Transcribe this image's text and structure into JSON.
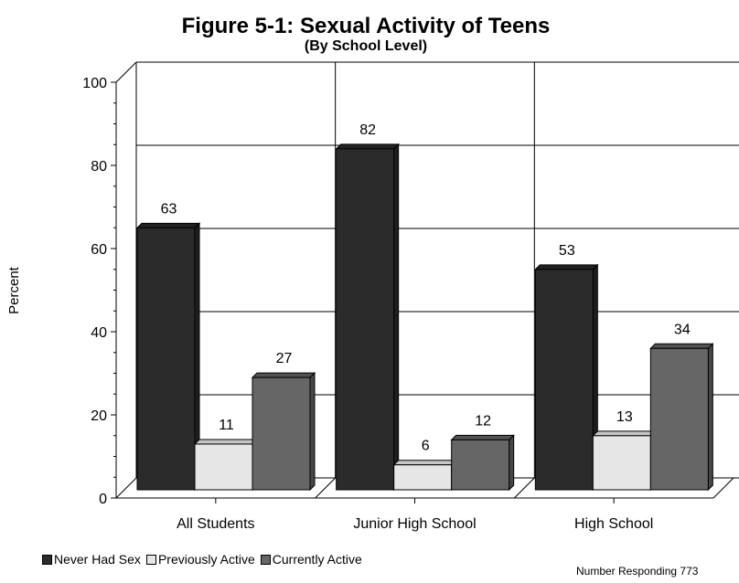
{
  "chart_data": {
    "type": "bar",
    "title": "Figure 5-1: Sexual Activity of Teens",
    "subtitle": "(By School Level)",
    "xlabel": "",
    "ylabel": "Percent",
    "ylim": [
      0,
      100
    ],
    "yticks": [
      "0",
      "20",
      "40",
      "60",
      "80",
      "100"
    ],
    "categories": [
      "All Students",
      "Junior High School",
      "High School"
    ],
    "series": [
      {
        "name": "Never Had Sex",
        "values": [
          63,
          82,
          53
        ],
        "color": "#2b2b2b"
      },
      {
        "name": "Previously Active",
        "values": [
          11,
          6,
          13
        ],
        "color": "#e6e6e6"
      },
      {
        "name": "Currently Active",
        "values": [
          27,
          12,
          34
        ],
        "color": "#666666"
      }
    ],
    "grid": true,
    "legend_position": "bottom-left",
    "note": "Number Responding 773"
  }
}
